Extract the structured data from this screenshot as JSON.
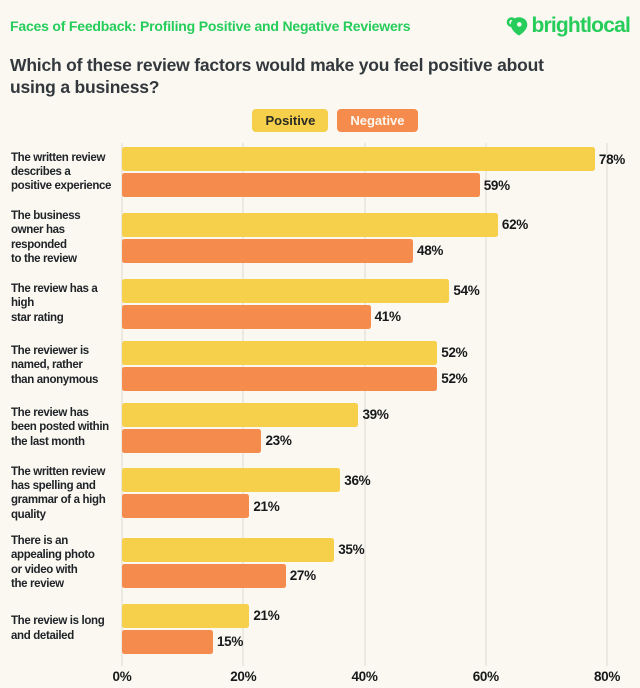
{
  "header": {
    "title": "Faces of Feedback: Profiling Positive and Negative Reviewers",
    "brand": "brightlocal"
  },
  "question": "Which of these review factors would make you feel positive about\nusing a business?",
  "legend": {
    "positive": "Positive",
    "negative": "Negative"
  },
  "colors": {
    "background": "#FAF8F1",
    "green": "#26CD5B",
    "positive": "#F6D04B",
    "negative": "#F58B4D",
    "gridline": "#ECE9E1",
    "text_dark": "#202428"
  },
  "chart_data": {
    "type": "bar",
    "orientation": "horizontal",
    "title": "Which of these review factors would make you feel positive about using a business?",
    "categories": [
      "The written review\ndescribes a\npositive experience",
      "The business\nowner has\nresponded\nto the review",
      "The review has a\nhigh\nstar rating",
      "The reviewer is\nnamed, rather\nthan anonymous",
      "The review has\nbeen posted within\nthe last month",
      "The written review\nhas spelling and\ngrammar of a high\nquality",
      "There is an\nappealing photo\nor video with\nthe review",
      "The review is long\nand detailed"
    ],
    "series": [
      {
        "name": "Positive",
        "values": [
          78,
          62,
          54,
          52,
          39,
          36,
          35,
          21
        ]
      },
      {
        "name": "Negative",
        "values": [
          59,
          48,
          41,
          52,
          23,
          21,
          27,
          15
        ]
      }
    ],
    "value_suffix": "%",
    "xlim": [
      0,
      80
    ],
    "x_ticks": [
      "0%",
      "20%",
      "40%",
      "60%",
      "80%"
    ],
    "grid": true,
    "legend_position": "top-center"
  }
}
